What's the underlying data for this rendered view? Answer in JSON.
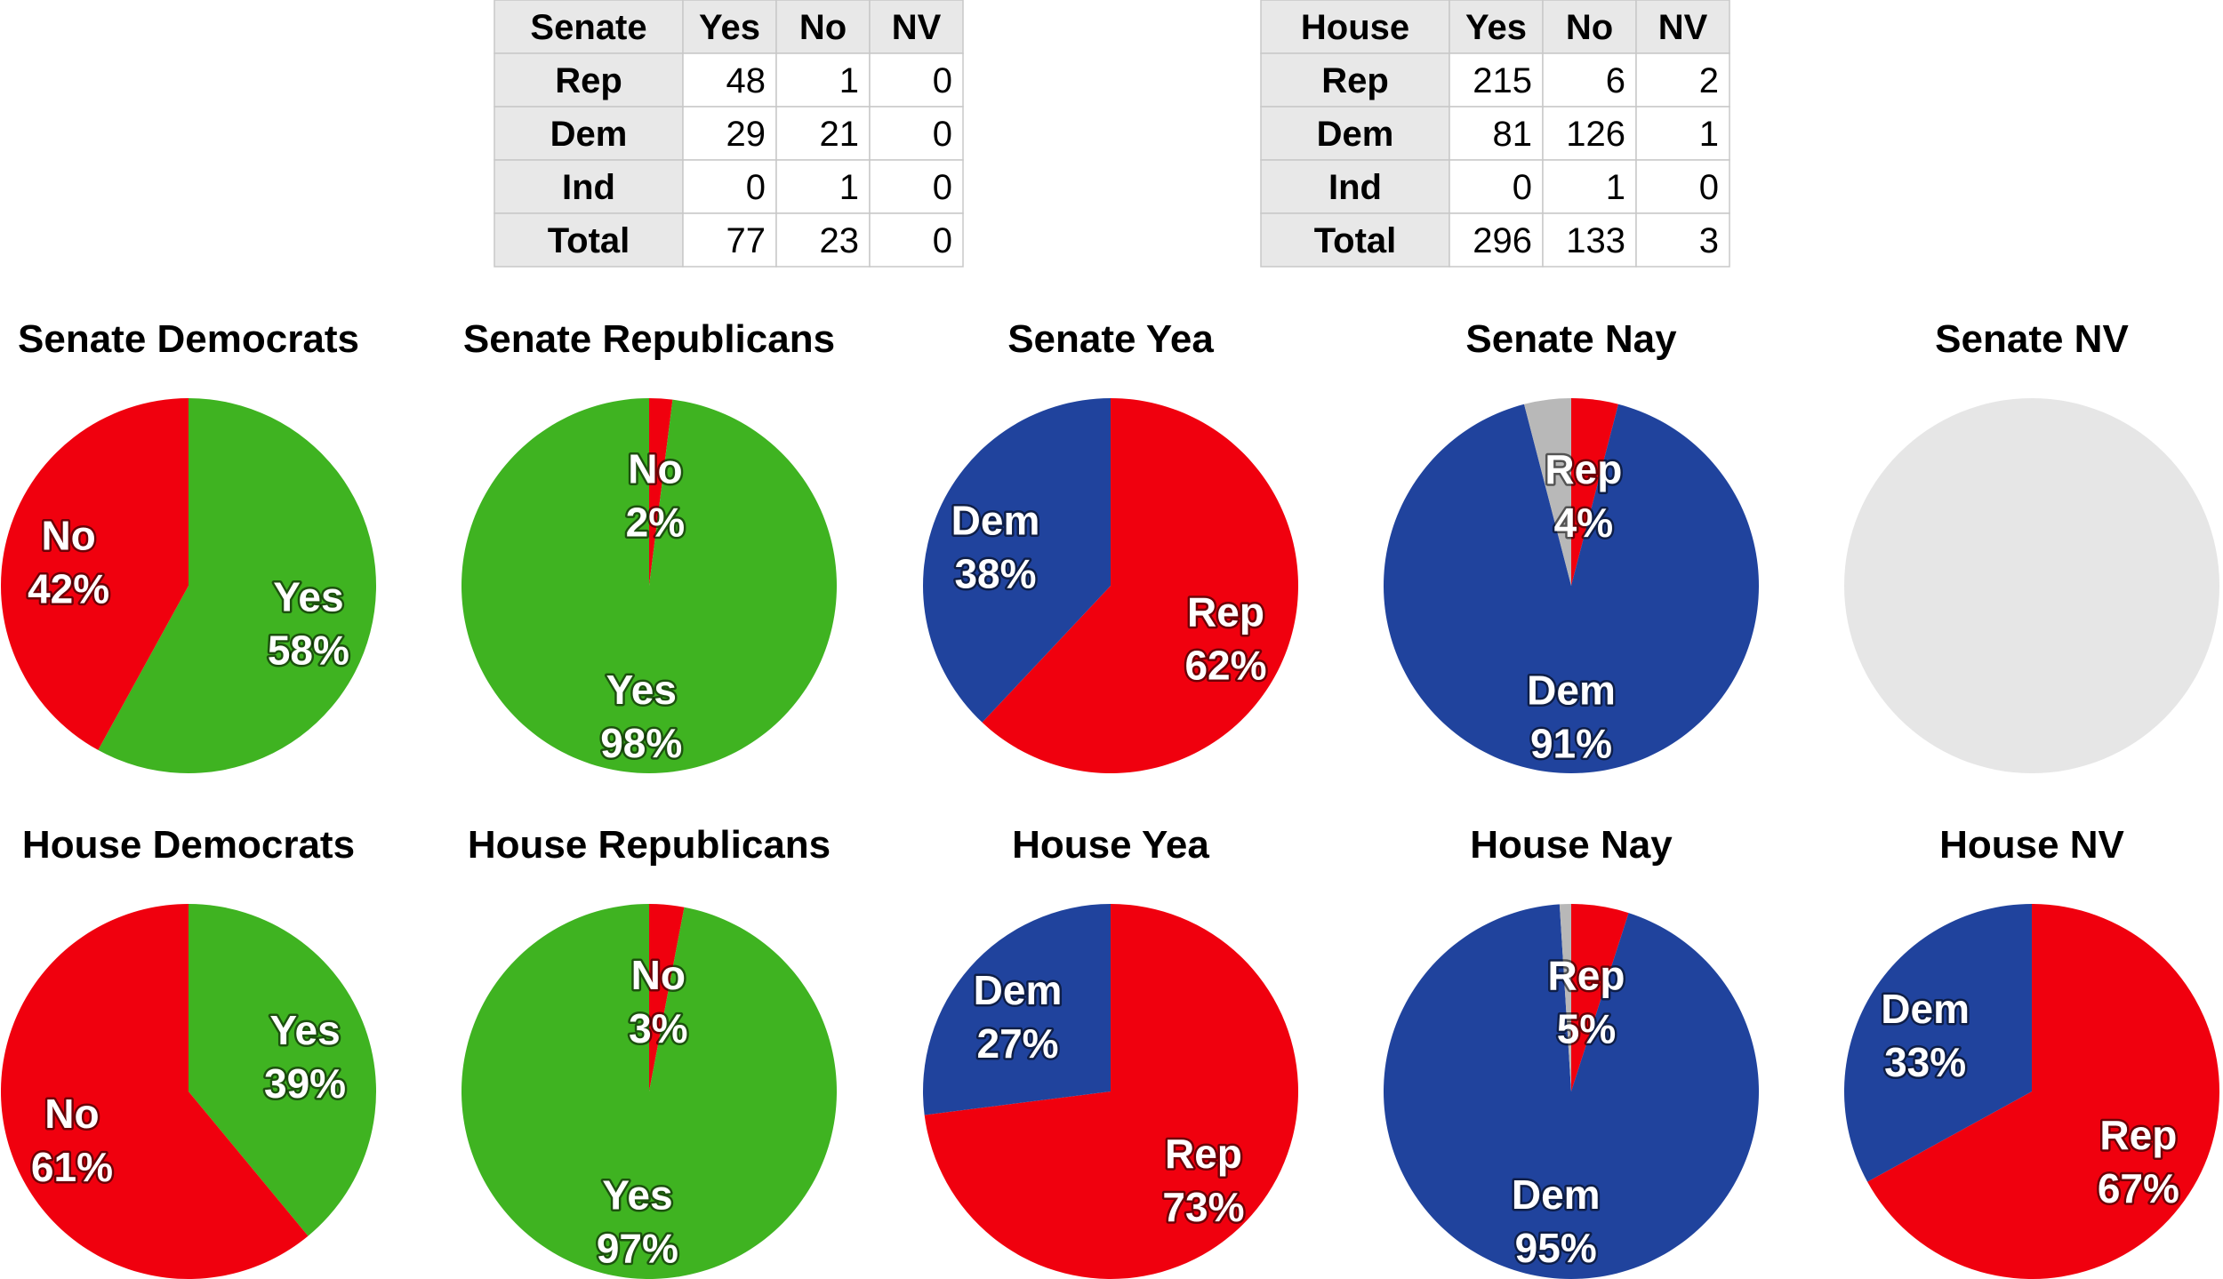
{
  "colors": {
    "rep": "#f0000e",
    "dem": "#20439d",
    "yes": "#3fb321",
    "nv": "#b8b8b8",
    "empty": "#e6e6e6",
    "table_header_bg": "#e8e8e8",
    "table_border": "#c8c8c8"
  },
  "tables": [
    {
      "header": [
        "Senate",
        "Yes",
        "No",
        "NV"
      ],
      "rows": [
        [
          "Rep",
          "48",
          "1",
          "0"
        ],
        [
          "Dem",
          "29",
          "21",
          "0"
        ],
        [
          "Ind",
          "0",
          "1",
          "0"
        ],
        [
          "Total",
          "77",
          "23",
          "0"
        ]
      ]
    },
    {
      "header": [
        "House",
        "Yes",
        "No",
        "NV"
      ],
      "rows": [
        [
          "Rep",
          "215",
          "6",
          "2"
        ],
        [
          "Dem",
          "81",
          "126",
          "1"
        ],
        [
          "Ind",
          "0",
          "1",
          "0"
        ],
        [
          "Total",
          "296",
          "133",
          "3"
        ]
      ]
    }
  ],
  "chart_data": [
    {
      "type": "pie",
      "title": "Senate Democrats",
      "slices": [
        {
          "label": "Yes",
          "value": 58,
          "pct": "58%",
          "color": "yes"
        },
        {
          "label": "No",
          "value": 42,
          "pct": "42%",
          "color": "rep"
        }
      ]
    },
    {
      "type": "pie",
      "title": "Senate Republicans",
      "slices": [
        {
          "label": "No",
          "value": 2,
          "pct": "2%",
          "color": "rep"
        },
        {
          "label": "Yes",
          "value": 98,
          "pct": "98%",
          "color": "yes"
        }
      ]
    },
    {
      "type": "pie",
      "title": "Senate Yea",
      "slices": [
        {
          "label": "Rep",
          "value": 62,
          "pct": "62%",
          "color": "rep"
        },
        {
          "label": "Dem",
          "value": 38,
          "pct": "38%",
          "color": "dem"
        }
      ]
    },
    {
      "type": "pie",
      "title": "Senate Nay",
      "slices": [
        {
          "label": "Rep",
          "value": 4,
          "pct": "4%",
          "color": "rep"
        },
        {
          "label": "Dem",
          "value": 91,
          "pct": "91%",
          "color": "dem"
        },
        {
          "label": "",
          "value": 4,
          "pct": "",
          "color": "nv"
        }
      ]
    },
    {
      "type": "pie",
      "title": "Senate NV",
      "slices": []
    },
    {
      "type": "pie",
      "title": "House Democrats",
      "slices": [
        {
          "label": "Yes",
          "value": 39,
          "pct": "39%",
          "color": "yes"
        },
        {
          "label": "No",
          "value": 61,
          "pct": "61%",
          "color": "rep"
        }
      ]
    },
    {
      "type": "pie",
      "title": "House Republicans",
      "slices": [
        {
          "label": "No",
          "value": 3,
          "pct": "3%",
          "color": "rep"
        },
        {
          "label": "Yes",
          "value": 97,
          "pct": "97%",
          "color": "yes"
        }
      ]
    },
    {
      "type": "pie",
      "title": "House Yea",
      "slices": [
        {
          "label": "Rep",
          "value": 73,
          "pct": "73%",
          "color": "rep"
        },
        {
          "label": "Dem",
          "value": 27,
          "pct": "27%",
          "color": "dem"
        }
      ]
    },
    {
      "type": "pie",
      "title": "House Nay",
      "slices": [
        {
          "label": "Rep",
          "value": 5,
          "pct": "5%",
          "color": "rep"
        },
        {
          "label": "Dem",
          "value": 95,
          "pct": "95%",
          "color": "dem"
        },
        {
          "label": "",
          "value": 1,
          "pct": "",
          "color": "nv"
        }
      ]
    },
    {
      "type": "pie",
      "title": "House NV",
      "slices": [
        {
          "label": "Rep",
          "value": 67,
          "pct": "67%",
          "color": "rep"
        },
        {
          "label": "Dem",
          "value": 33,
          "pct": "33%",
          "color": "dem"
        }
      ]
    }
  ]
}
